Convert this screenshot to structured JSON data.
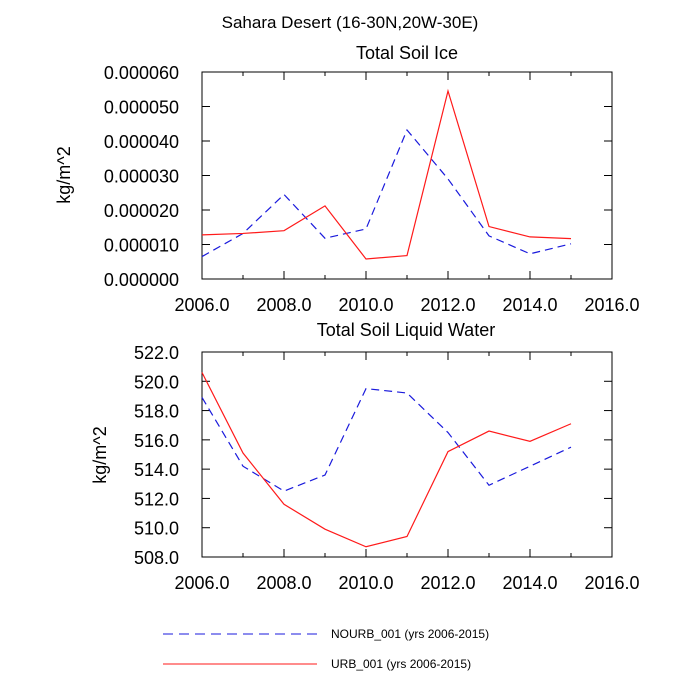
{
  "figure_title": "Sahara Desert (16-30N,20W-30E)",
  "colors": {
    "nourb": "#1a1adc",
    "urb": "#ff1a1a"
  },
  "legend": [
    {
      "label": "NOURB_001 (yrs 2006-2015)",
      "style": "dashed",
      "color": "#1a1adc"
    },
    {
      "label": "URB_001 (yrs 2006-2015)",
      "style": "solid",
      "color": "#ff1a1a"
    }
  ],
  "chart_data": [
    {
      "type": "line",
      "title": "Total Soil Ice",
      "xlabel": "",
      "ylabel": "kg/m^2",
      "xlim": [
        2006,
        2016
      ],
      "ylim": [
        0.0,
        6e-05
      ],
      "x_ticks": [
        2006,
        2008,
        2010,
        2012,
        2014,
        2016
      ],
      "x_tick_labels": [
        "2006.0",
        "2008.0",
        "2010.0",
        "2012.0",
        "2014.0",
        "2016.0"
      ],
      "y_ticks": [
        0.0,
        1e-05,
        2e-05,
        3e-05,
        4e-05,
        5e-05,
        6e-05
      ],
      "y_tick_labels": [
        "0.000000",
        "0.000010",
        "0.000020",
        "0.000030",
        "0.000040",
        "0.000050",
        "0.000060"
      ],
      "x": [
        2006,
        2007,
        2008,
        2009,
        2010,
        2011,
        2012,
        2013,
        2014,
        2015
      ],
      "series": [
        {
          "name": "NOURB_001 (yrs 2006-2015)",
          "style": "dashed",
          "color": "#1a1adc",
          "values": [
            6.5e-06,
            1.32e-05,
            2.45e-05,
            1.18e-05,
            1.45e-05,
            4.32e-05,
            2.9e-05,
            1.25e-05,
            7.3e-06,
            1.02e-05
          ]
        },
        {
          "name": "URB_001 (yrs 2006-2015)",
          "style": "solid",
          "color": "#ff1a1a",
          "values": [
            1.28e-05,
            1.32e-05,
            1.4e-05,
            2.12e-05,
            5.8e-06,
            6.8e-06,
            5.45e-05,
            1.52e-05,
            1.22e-05,
            1.17e-05
          ]
        }
      ]
    },
    {
      "type": "line",
      "title": "Total Soil Liquid Water",
      "xlabel": "",
      "ylabel": "kg/m^2",
      "xlim": [
        2006,
        2016
      ],
      "ylim": [
        508.0,
        522.0
      ],
      "x_ticks": [
        2006,
        2008,
        2010,
        2012,
        2014,
        2016
      ],
      "x_tick_labels": [
        "2006.0",
        "2008.0",
        "2010.0",
        "2012.0",
        "2014.0",
        "2016.0"
      ],
      "y_ticks": [
        508,
        510,
        512,
        514,
        516,
        518,
        520,
        522
      ],
      "y_tick_labels": [
        "508.0",
        "510.0",
        "512.0",
        "514.0",
        "516.0",
        "518.0",
        "520.0",
        "522.0"
      ],
      "x": [
        2006,
        2007,
        2008,
        2009,
        2010,
        2011,
        2012,
        2013,
        2014,
        2015
      ],
      "series": [
        {
          "name": "NOURB_001 (yrs 2006-2015)",
          "style": "dashed",
          "color": "#1a1adc",
          "values": [
            518.9,
            514.2,
            512.5,
            513.6,
            519.5,
            519.2,
            516.5,
            512.9,
            514.2,
            515.5
          ]
        },
        {
          "name": "URB_001 (yrs 2006-2015)",
          "style": "solid",
          "color": "#ff1a1a",
          "values": [
            520.6,
            515.1,
            511.6,
            509.9,
            508.7,
            509.4,
            515.2,
            516.6,
            515.9,
            517.1
          ]
        }
      ]
    }
  ]
}
